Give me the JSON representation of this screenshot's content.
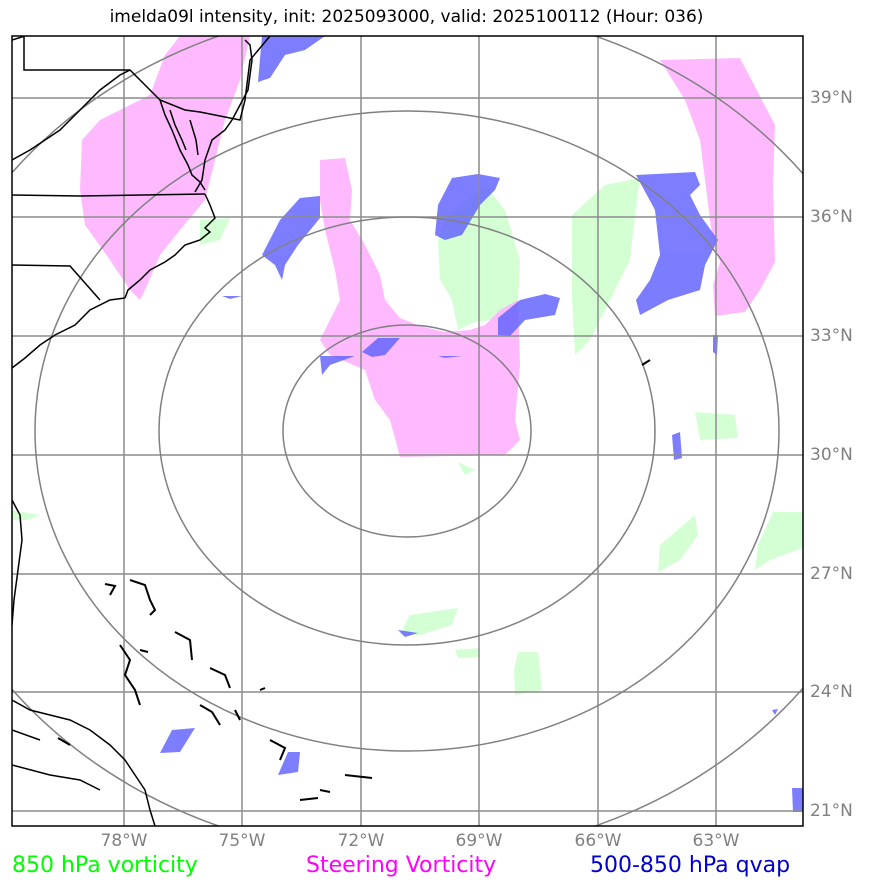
{
  "title": "imelda09l intensity, init: 2025093000, valid: 2025100112 (Hour: 036)",
  "lat_labels": [
    "39°N",
    "36°N",
    "33°N",
    "30°N",
    "27°N",
    "24°N",
    "21°N"
  ],
  "lon_labels": [
    "78°W",
    "75°W",
    "72°W",
    "69°W",
    "66°W",
    "63°W"
  ],
  "legend": [
    {
      "label": "850 hPa vorticity",
      "color": "#00ff00"
    },
    {
      "label": "Steering Vorticity",
      "color": "#ff00ff"
    },
    {
      "label": "500-850 hPa qvap",
      "color": "#0000cc"
    }
  ],
  "colors": {
    "vorticity_850": "#ccffcc",
    "steering_vorticity": "#ffb3ff",
    "qvap": "#6666ff",
    "grid": "#8c8c8c",
    "coast": "#000000",
    "range_rings": "#808080"
  }
}
